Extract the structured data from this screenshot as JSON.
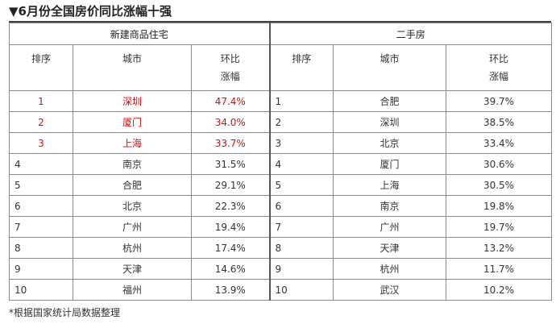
{
  "title": "▼6月份全国房价同比涨幅十强",
  "groups": {
    "left": "新建商品住宅",
    "right": "二手房"
  },
  "headers": {
    "rank": "排序",
    "city": "城市",
    "change_line1": "环比",
    "change_line2": "涨幅"
  },
  "new_homes": [
    {
      "rank": "1",
      "city": "深圳",
      "change": "47.4%",
      "highlight": true
    },
    {
      "rank": "2",
      "city": "厦门",
      "change": "34.0%",
      "highlight": true
    },
    {
      "rank": "3",
      "city": "上海",
      "change": "33.7%",
      "highlight": true
    },
    {
      "rank": "4",
      "city": "南京",
      "change": "31.5%",
      "highlight": false
    },
    {
      "rank": "5",
      "city": "合肥",
      "change": "29.1%",
      "highlight": false
    },
    {
      "rank": "6",
      "city": "北京",
      "change": "22.3%",
      "highlight": false
    },
    {
      "rank": "7",
      "city": "广州",
      "change": "19.4%",
      "highlight": false
    },
    {
      "rank": "8",
      "city": "杭州",
      "change": "17.4%",
      "highlight": false
    },
    {
      "rank": "9",
      "city": "天津",
      "change": "14.6%",
      "highlight": false
    },
    {
      "rank": "10",
      "city": "福州",
      "change": "13.9%",
      "highlight": false
    }
  ],
  "second_hand": [
    {
      "rank": "1",
      "city": "合肥",
      "change": "39.7%"
    },
    {
      "rank": "2",
      "city": "深圳",
      "change": "38.5%"
    },
    {
      "rank": "3",
      "city": "北京",
      "change": "33.4%"
    },
    {
      "rank": "4",
      "city": "厦门",
      "change": "30.6%"
    },
    {
      "rank": "5",
      "city": "上海",
      "change": "30.5%"
    },
    {
      "rank": "6",
      "city": "南京",
      "change": "19.8%"
    },
    {
      "rank": "7",
      "city": "广州",
      "change": "19.7%"
    },
    {
      "rank": "8",
      "city": "天津",
      "change": "13.2%"
    },
    {
      "rank": "9",
      "city": "杭州",
      "change": "11.7%"
    },
    {
      "rank": "10",
      "city": "武汉",
      "change": "10.2%"
    }
  ],
  "footnote": "*根据国家统计局数据整理",
  "colors": {
    "highlight": "#cc1111"
  }
}
